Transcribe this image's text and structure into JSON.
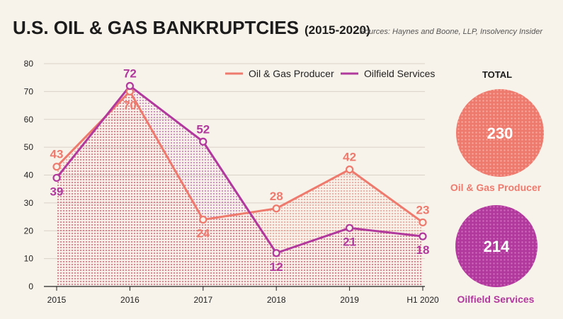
{
  "header": {
    "title": "U.S. OIL & GAS BANKRUPTCIES",
    "title_suffix": "(2015-2020)",
    "source": "Sources: Haynes and Boone, LLP, Insolvency Insider"
  },
  "colors": {
    "producer": "#ee7a6e",
    "services": "#b1389c",
    "background": "#f8f3ea",
    "grid": "#d8d2c8"
  },
  "chart_data": {
    "type": "area",
    "categories": [
      "2015",
      "2016",
      "2017",
      "2018",
      "2019",
      "H1 2020"
    ],
    "ylim": [
      0,
      80
    ],
    "yticks": [
      0,
      10,
      20,
      30,
      40,
      50,
      60,
      70,
      80
    ],
    "grid": true,
    "legend_position": "top-right",
    "series": [
      {
        "name": "Oil & Gas Producer",
        "values": [
          43,
          70,
          24,
          28,
          42,
          23
        ]
      },
      {
        "name": "Oilfield Services",
        "values": [
          39,
          72,
          52,
          12,
          21,
          18
        ]
      }
    ]
  },
  "totals": {
    "title": "TOTAL",
    "items": [
      {
        "name": "Oil & Gas Producer",
        "value": "230"
      },
      {
        "name": "Oilfield Services",
        "value": "214"
      }
    ]
  }
}
